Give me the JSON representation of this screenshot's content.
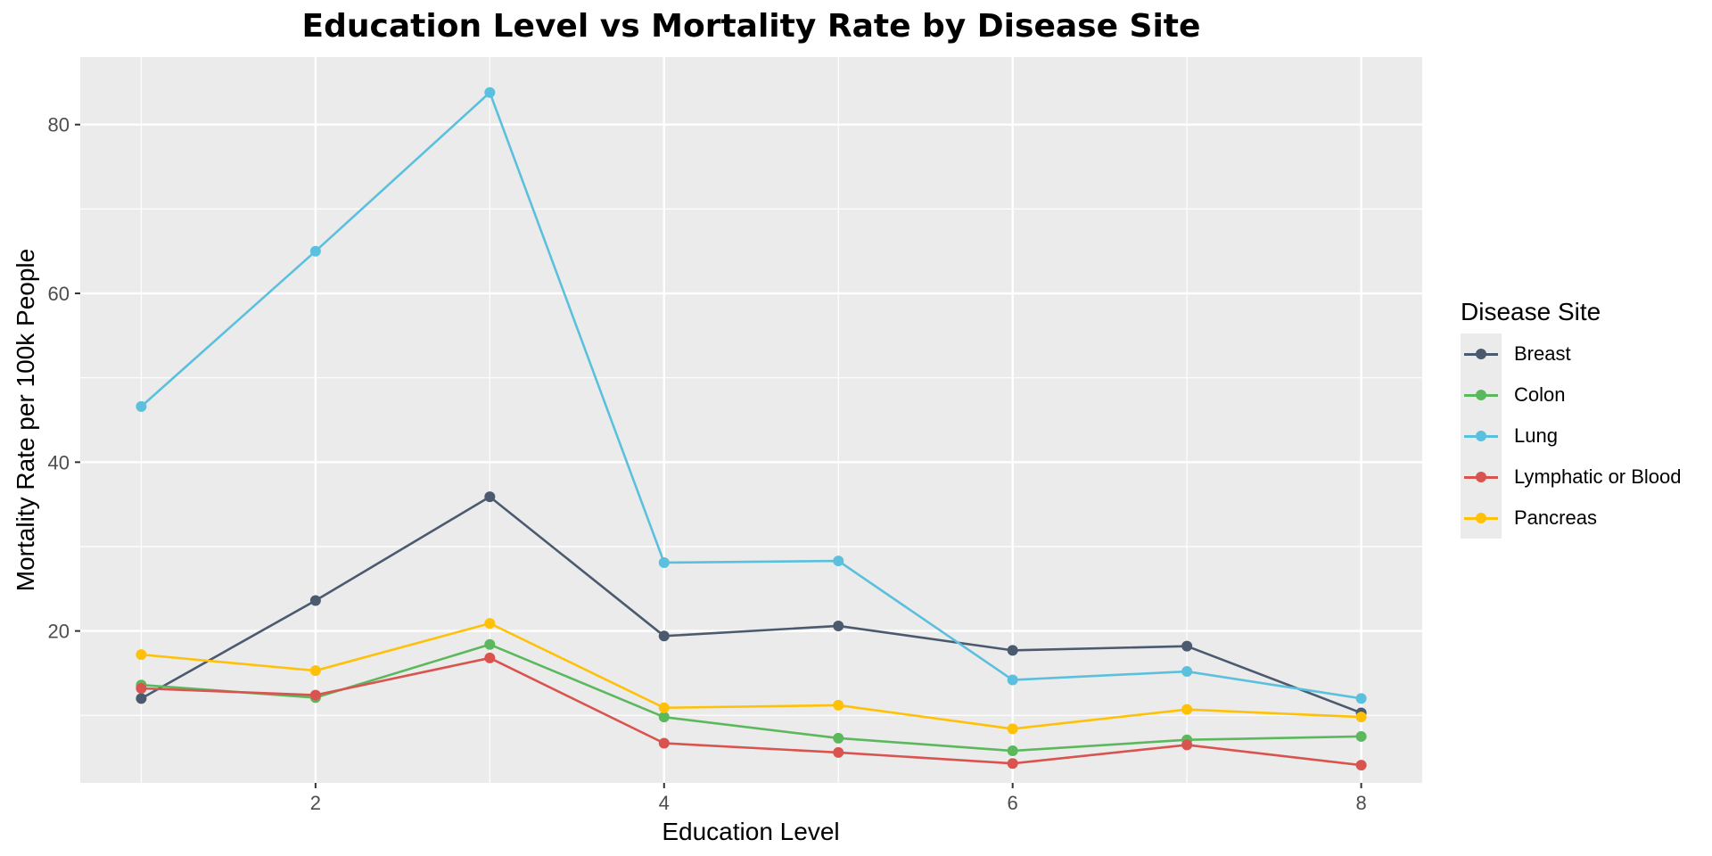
{
  "chart_data": {
    "type": "line",
    "title": "Education Level vs Mortality Rate by Disease Site",
    "xlabel": "Education Level",
    "ylabel": "Mortality Rate per 100k People",
    "x": [
      1,
      2,
      3,
      4,
      5,
      6,
      7,
      8
    ],
    "xlim": [
      0.65,
      8.35
    ],
    "ylim": [
      2,
      88
    ],
    "x_ticks": [
      "2",
      "4",
      "6",
      "8"
    ],
    "y_ticks": [
      "20",
      "40",
      "60",
      "80"
    ],
    "grid": true,
    "legend": {
      "title": "Disease Site",
      "position": "right"
    },
    "series": [
      {
        "name": "Breast",
        "color": "#4b5a6e",
        "values": [
          12.0,
          23.6,
          35.9,
          19.4,
          20.6,
          17.7,
          18.2,
          10.3
        ]
      },
      {
        "name": "Colon",
        "color": "#5cb85c",
        "values": [
          13.6,
          12.1,
          18.4,
          9.8,
          7.3,
          5.8,
          7.1,
          7.5
        ]
      },
      {
        "name": "Lung",
        "color": "#5bc0de",
        "values": [
          46.6,
          65.0,
          83.8,
          28.1,
          28.3,
          14.2,
          15.2,
          12.0
        ]
      },
      {
        "name": "Lymphatic or Blood",
        "color": "#d9534f",
        "values": [
          13.2,
          12.4,
          16.8,
          6.7,
          5.6,
          4.3,
          6.5,
          4.1
        ]
      },
      {
        "name": "Pancreas",
        "color": "#ffc107",
        "values": [
          17.2,
          15.3,
          20.9,
          10.9,
          11.2,
          8.4,
          10.7,
          9.8
        ]
      }
    ]
  }
}
